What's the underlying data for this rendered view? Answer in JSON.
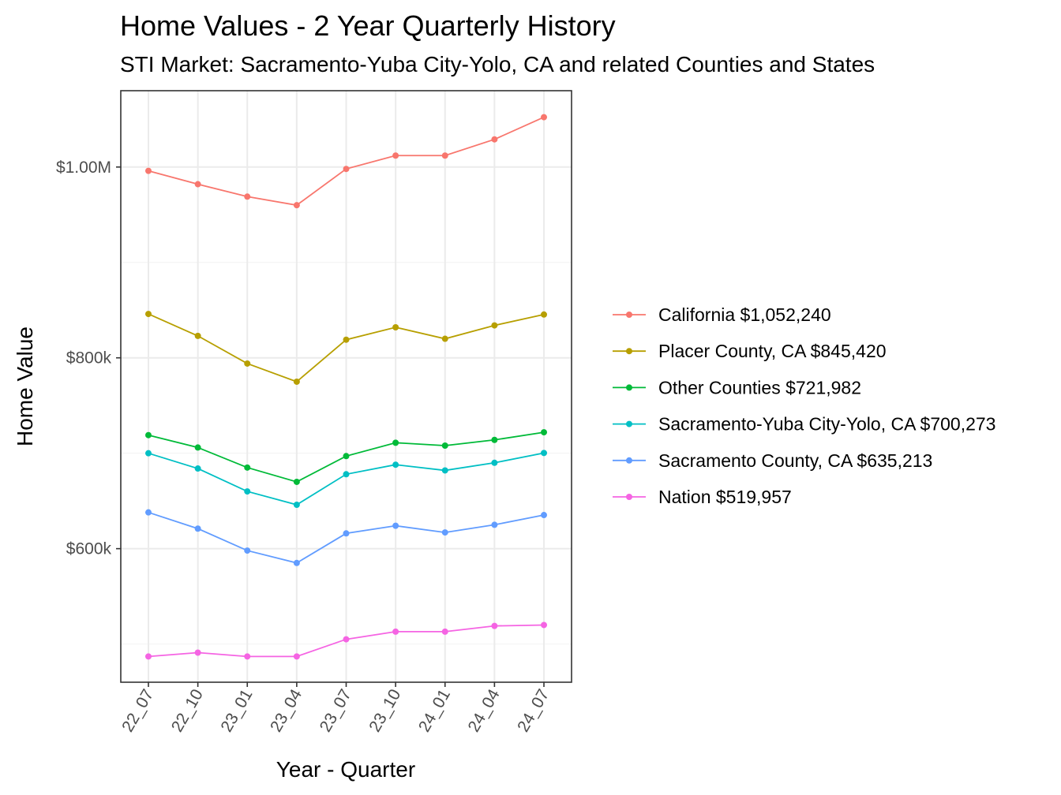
{
  "chart_data": {
    "type": "line",
    "title": "Home Values - 2 Year Quarterly History",
    "subtitle": "STI Market: Sacramento-Yuba City-Yolo, CA and related Counties and States",
    "xlabel": "Year - Quarter",
    "ylabel": "Home Value",
    "categories": [
      "22_07",
      "22_10",
      "23_01",
      "23_04",
      "23_07",
      "23_10",
      "24_01",
      "24_04",
      "24_07"
    ],
    "ylim": [
      460000,
      1080000
    ],
    "yticks": [
      {
        "value": 600000,
        "label": "$600k"
      },
      {
        "value": 800000,
        "label": "$800k"
      },
      {
        "value": 1000000,
        "label": "$1.00M"
      }
    ],
    "minor_yticks": [
      500000,
      700000,
      900000
    ],
    "grid": true,
    "legend_position": "right",
    "series": [
      {
        "name": "California $1,052,240",
        "color": "#F8766D",
        "values": [
          996000,
          982000,
          969000,
          960000,
          998000,
          1012000,
          1012000,
          1029000,
          1052240
        ]
      },
      {
        "name": "Placer County, CA $845,420",
        "color": "#B79F00",
        "values": [
          846000,
          823000,
          794000,
          775000,
          819000,
          832000,
          820000,
          834000,
          845420
        ]
      },
      {
        "name": "Other Counties $721,982",
        "color": "#00BA38",
        "values": [
          719000,
          706000,
          685000,
          670000,
          697000,
          711000,
          708000,
          714000,
          721982
        ]
      },
      {
        "name": "Sacramento-Yuba City-Yolo, CA $700,273",
        "color": "#00BFC4",
        "values": [
          700000,
          684000,
          660000,
          646000,
          678000,
          688000,
          682000,
          690000,
          700273
        ]
      },
      {
        "name": "Sacramento County, CA $635,213",
        "color": "#619CFF",
        "values": [
          638000,
          621000,
          598000,
          585000,
          616000,
          624000,
          617000,
          625000,
          635213
        ]
      },
      {
        "name": "Nation $519,957",
        "color": "#F564E3",
        "values": [
          487000,
          491000,
          487000,
          487000,
          505000,
          513000,
          513000,
          519000,
          519957
        ]
      }
    ]
  }
}
